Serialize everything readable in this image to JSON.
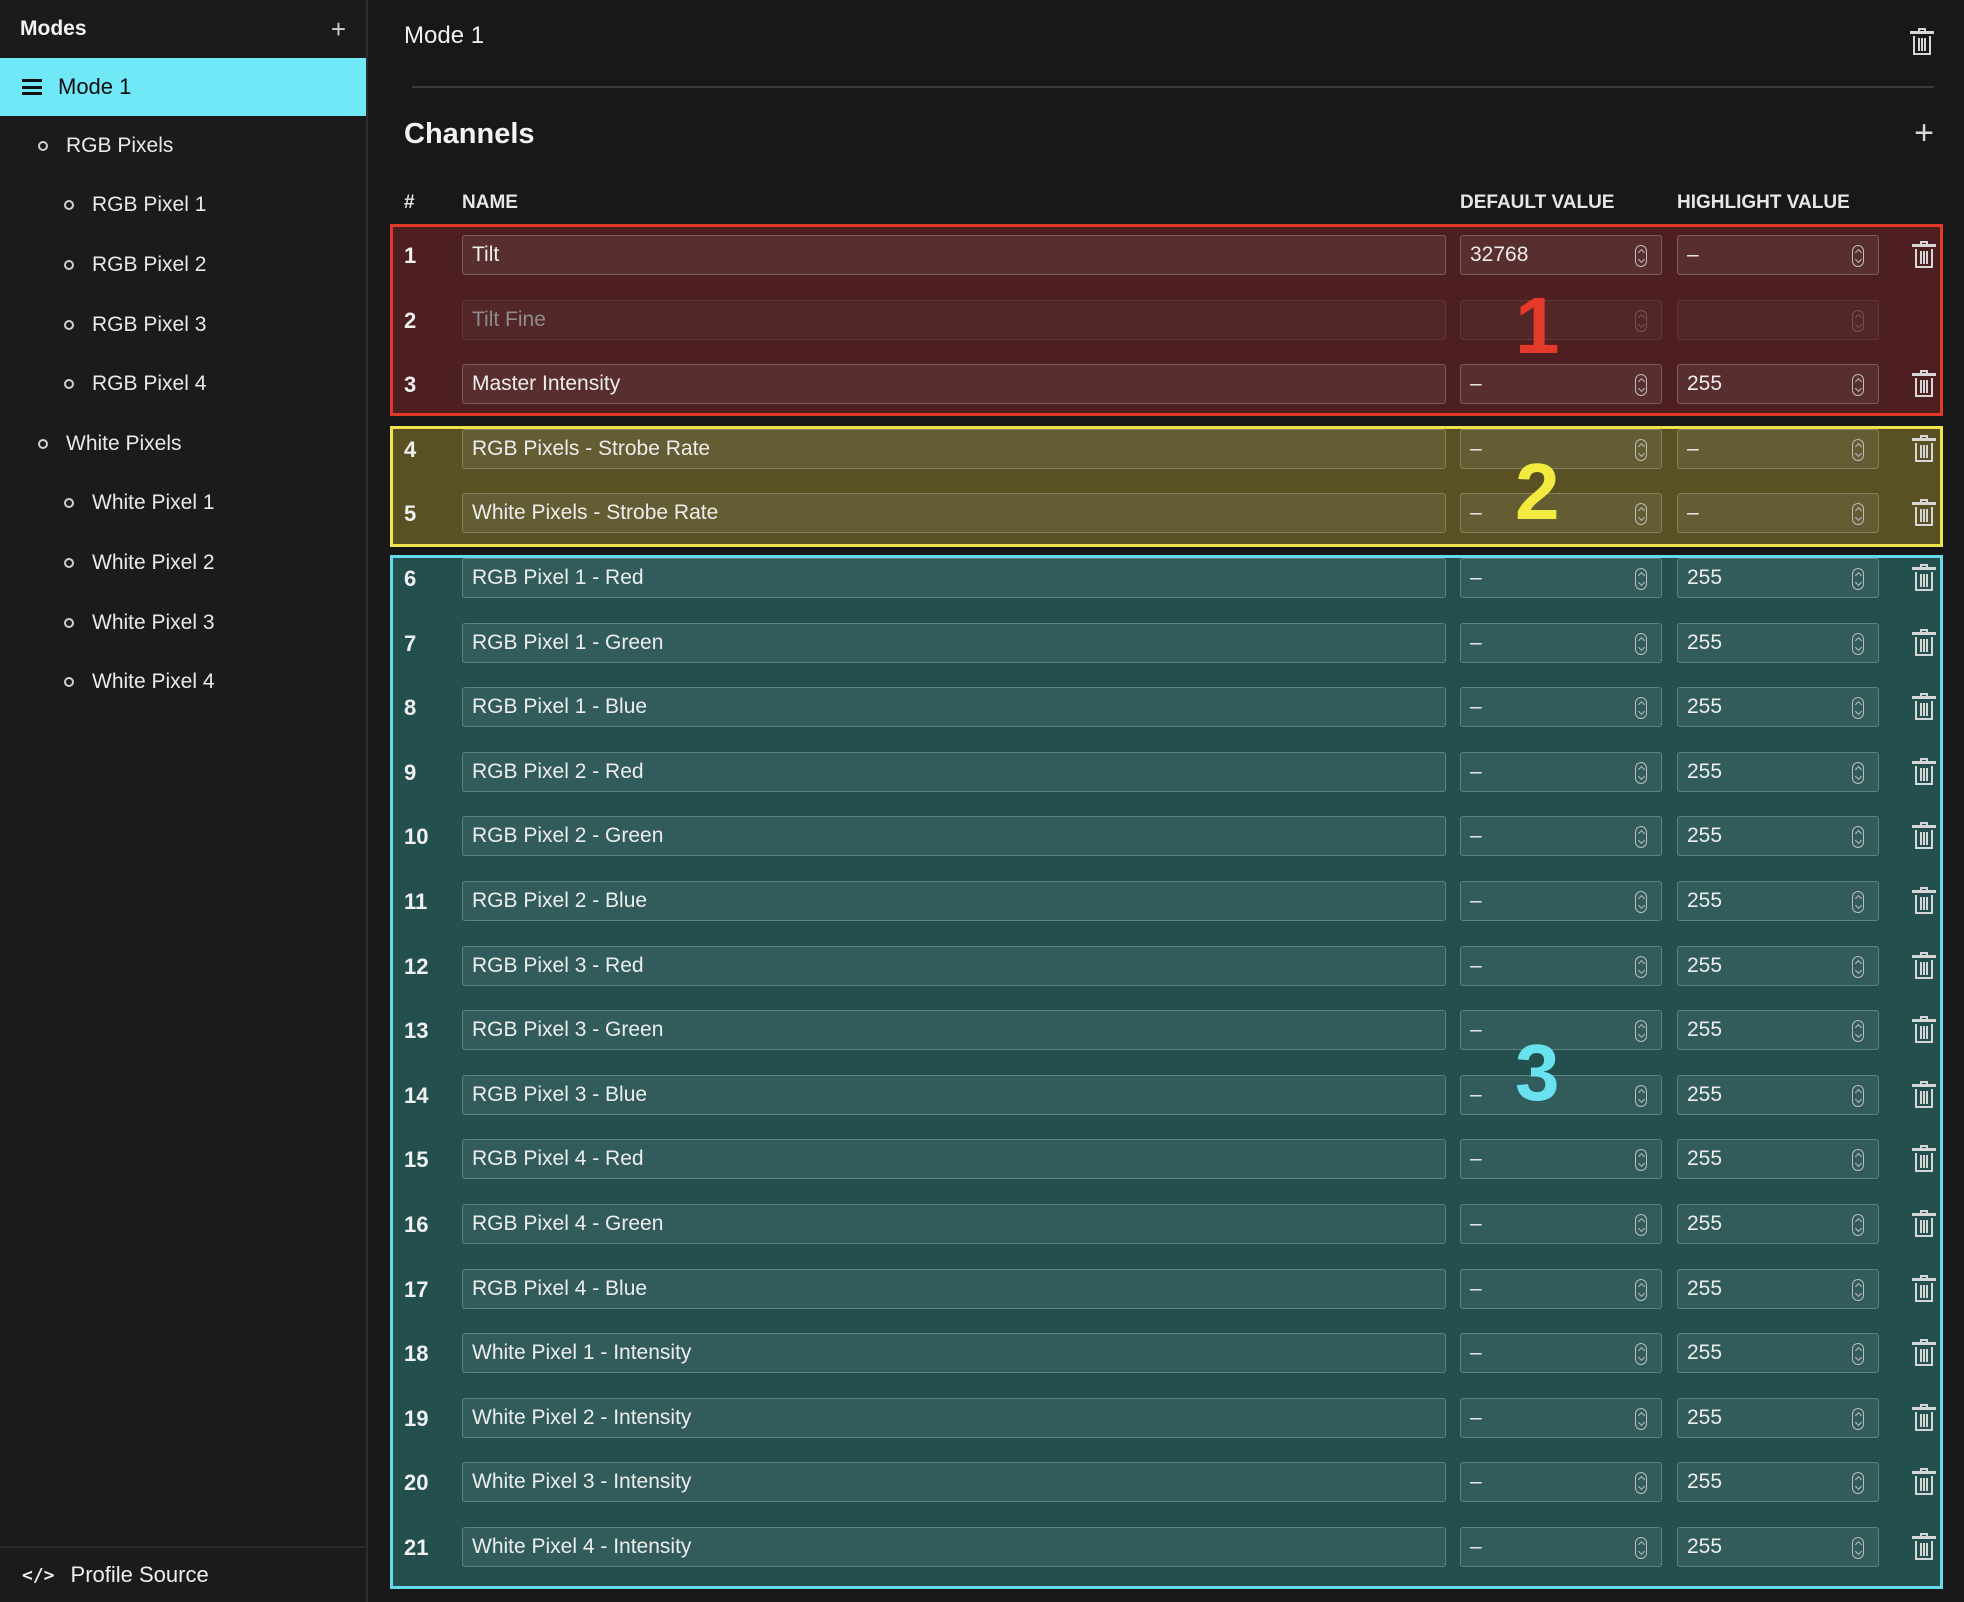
{
  "sidebar": {
    "title": "Modes",
    "add_label": "+",
    "active_mode": "Mode 1",
    "tree": [
      {
        "label": "RGB Pixels",
        "level": 1
      },
      {
        "label": "RGB Pixel 1",
        "level": 2
      },
      {
        "label": "RGB Pixel 2",
        "level": 2
      },
      {
        "label": "RGB Pixel 3",
        "level": 2
      },
      {
        "label": "RGB Pixel 4",
        "level": 2
      },
      {
        "label": "White Pixels",
        "level": 1
      },
      {
        "label": "White Pixel 1",
        "level": 2
      },
      {
        "label": "White Pixel 2",
        "level": 2
      },
      {
        "label": "White Pixel 3",
        "level": 2
      },
      {
        "label": "White Pixel 4",
        "level": 2
      }
    ],
    "footer_icon": "</>",
    "footer_label": "Profile Source"
  },
  "main": {
    "mode_title": "Mode 1",
    "section_title": "Channels",
    "add_label": "+",
    "columns": {
      "num": "#",
      "name": "NAME",
      "default": "DEFAULT VALUE",
      "highlight": "HIGHLIGHT VALUE"
    },
    "group_labels": [
      "1",
      "2",
      "3"
    ],
    "channels": [
      {
        "num": "1",
        "name": "Tilt",
        "default": "32768",
        "highlight": "–",
        "disabled": false,
        "deletable": true
      },
      {
        "num": "2",
        "name": "Tilt Fine",
        "default": "",
        "highlight": "",
        "disabled": true,
        "deletable": false
      },
      {
        "num": "3",
        "name": "Master Intensity",
        "default": "–",
        "highlight": "255",
        "disabled": false,
        "deletable": true
      },
      {
        "num": "4",
        "name": "RGB Pixels - Strobe Rate",
        "default": "–",
        "highlight": "–",
        "disabled": false,
        "deletable": true
      },
      {
        "num": "5",
        "name": "White Pixels - Strobe Rate",
        "default": "–",
        "highlight": "–",
        "disabled": false,
        "deletable": true
      },
      {
        "num": "6",
        "name": "RGB Pixel 1 - Red",
        "default": "–",
        "highlight": "255",
        "disabled": false,
        "deletable": true
      },
      {
        "num": "7",
        "name": "RGB Pixel 1 - Green",
        "default": "–",
        "highlight": "255",
        "disabled": false,
        "deletable": true
      },
      {
        "num": "8",
        "name": "RGB Pixel 1 - Blue",
        "default": "–",
        "highlight": "255",
        "disabled": false,
        "deletable": true
      },
      {
        "num": "9",
        "name": "RGB Pixel 2 - Red",
        "default": "–",
        "highlight": "255",
        "disabled": false,
        "deletable": true
      },
      {
        "num": "10",
        "name": "RGB Pixel 2 - Green",
        "default": "–",
        "highlight": "255",
        "disabled": false,
        "deletable": true
      },
      {
        "num": "11",
        "name": "RGB Pixel 2 - Blue",
        "default": "–",
        "highlight": "255",
        "disabled": false,
        "deletable": true
      },
      {
        "num": "12",
        "name": "RGB Pixel 3 - Red",
        "default": "–",
        "highlight": "255",
        "disabled": false,
        "deletable": true
      },
      {
        "num": "13",
        "name": "RGB Pixel 3 - Green",
        "default": "–",
        "highlight": "255",
        "disabled": false,
        "deletable": true
      },
      {
        "num": "14",
        "name": "RGB Pixel 3 - Blue",
        "default": "–",
        "highlight": "255",
        "disabled": false,
        "deletable": true
      },
      {
        "num": "15",
        "name": "RGB Pixel 4 - Red",
        "default": "–",
        "highlight": "255",
        "disabled": false,
        "deletable": true
      },
      {
        "num": "16",
        "name": "RGB Pixel 4 - Green",
        "default": "–",
        "highlight": "255",
        "disabled": false,
        "deletable": true
      },
      {
        "num": "17",
        "name": "RGB Pixel 4 - Blue",
        "default": "–",
        "highlight": "255",
        "disabled": false,
        "deletable": true
      },
      {
        "num": "18",
        "name": "White Pixel 1 - Intensity",
        "default": "–",
        "highlight": "255",
        "disabled": false,
        "deletable": true
      },
      {
        "num": "19",
        "name": "White Pixel 2 - Intensity",
        "default": "–",
        "highlight": "255",
        "disabled": false,
        "deletable": true
      },
      {
        "num": "20",
        "name": "White Pixel 3 - Intensity",
        "default": "–",
        "highlight": "255",
        "disabled": false,
        "deletable": true
      },
      {
        "num": "21",
        "name": "White Pixel 4 - Intensity",
        "default": "–",
        "highlight": "255",
        "disabled": false,
        "deletable": true
      }
    ]
  },
  "colors": {
    "active_mode_bg": "#6fe8f7",
    "group1": "#e0392a",
    "group2": "#efe44a",
    "group3": "#63dbe8"
  }
}
